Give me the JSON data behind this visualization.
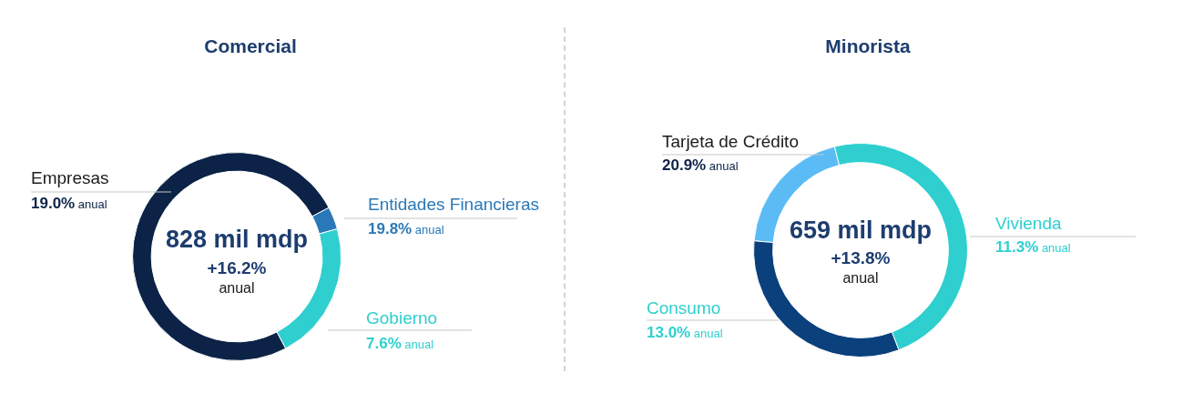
{
  "chart_data": [
    {
      "type": "donut",
      "title": "Comercial",
      "categories": [
        "Empresas",
        "Entidades Financieras",
        "Gobierno"
      ],
      "values": [
        75,
        3.5,
        21.5
      ],
      "colors": [
        "#0c2347",
        "#2a78b8",
        "#2fcfcf"
      ],
      "annotations": [
        "828 mil mdp",
        "+16.2%",
        "anual",
        "19.0% anual",
        "19.8% anual",
        "7.6% anual"
      ]
    },
    {
      "type": "donut",
      "title": "Minorista",
      "categories": [
        "Tarjeta de Crédito",
        "Vivienda",
        "Consumo"
      ],
      "values": [
        19.7,
        48.1,
        32.2
      ],
      "colors": [
        "#5bbcf5",
        "#2fcfcf",
        "#0a407c"
      ],
      "annotations": [
        "659 mil mdp",
        "+13.8%",
        "anual",
        "20.9% anual",
        "11.3% anual",
        "13.0% anual"
      ]
    }
  ]
}
